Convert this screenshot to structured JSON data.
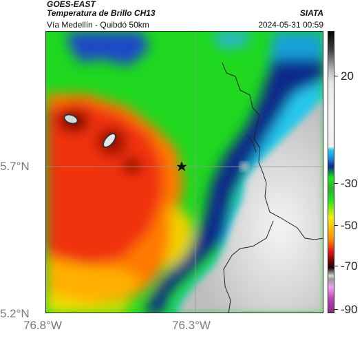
{
  "header": {
    "satellite": "GOES-EAST",
    "product": "Temperatura de Brillo CH13",
    "route": "Vía Medellín - Quibdó 50km",
    "agency": "SIATA",
    "datetime": "2024-05-31 00:59"
  },
  "map": {
    "lat_labels": [
      {
        "value": 5.7,
        "label": "5.7°N"
      },
      {
        "value": 5.2,
        "label": "5.2°N"
      }
    ],
    "lon_labels": [
      {
        "value": -76.8,
        "label": "76.8°W"
      },
      {
        "value": -76.3,
        "label": "76.3°W"
      }
    ],
    "marker_icon": "star-icon"
  },
  "colorbar": {
    "labels": [
      {
        "value": 20,
        "label": "20"
      },
      {
        "value": -30,
        "label": "-30"
      },
      {
        "value": -50,
        "label": "-50"
      },
      {
        "value": -70,
        "label": "-70"
      },
      {
        "value": -90,
        "label": "-90"
      }
    ],
    "colors": {
      "warm_top": "#111111",
      "gray": "#cfcfcf",
      "cyan": "#22d0f0",
      "blue": "#0a2a8c",
      "green": "#19e619",
      "yellow": "#f2f200",
      "orange": "#ff8c00",
      "red": "#e61919",
      "dark_red": "#3a0000",
      "magenta": "#c040c0"
    }
  }
}
